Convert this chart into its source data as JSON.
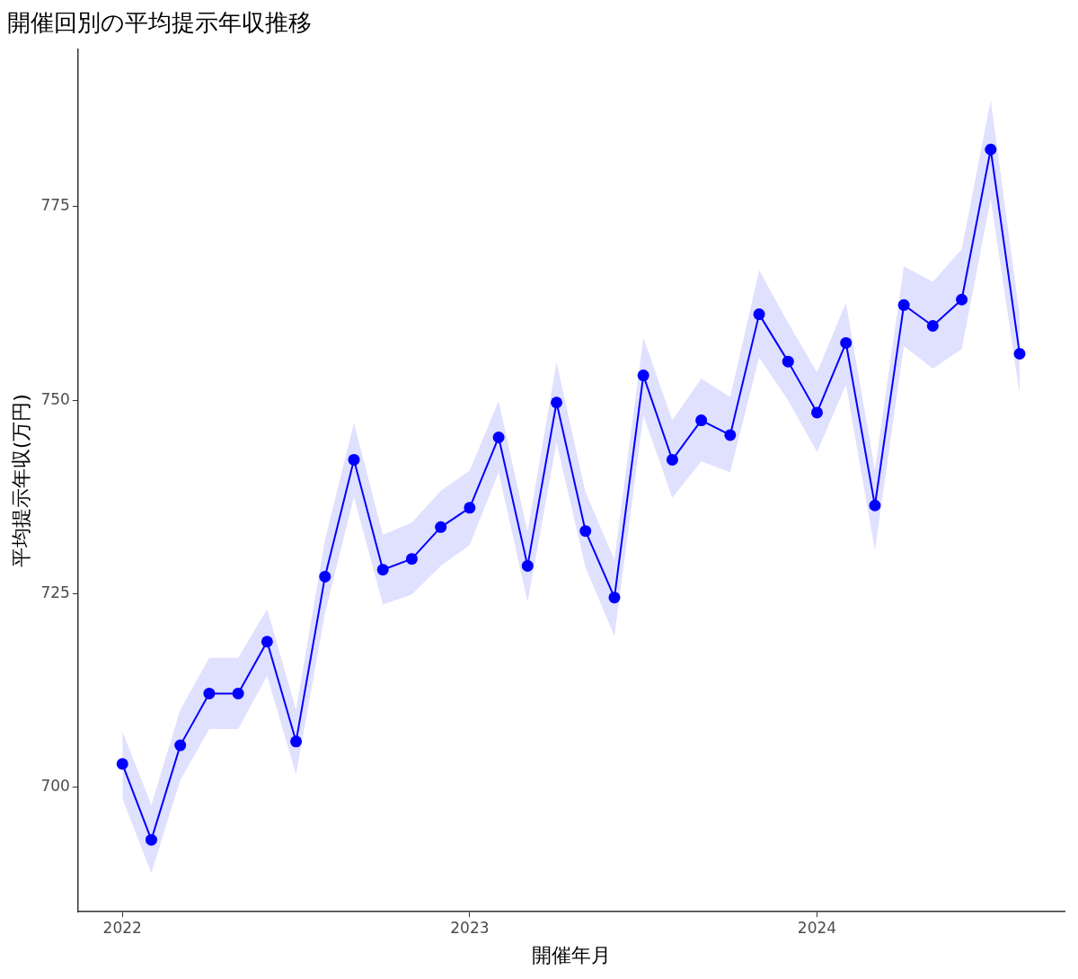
{
  "chart_data": {
    "type": "line",
    "title": "開催回別の平均提示年収推移",
    "xlabel": "開催年月",
    "ylabel": "平均提示年収(万円)",
    "x": [
      "2022-01",
      "2022-02",
      "2022-03",
      "2022-04",
      "2022-05",
      "2022-06",
      "2022-07",
      "2022-08",
      "2022-09",
      "2022-10",
      "2022-11",
      "2022-12",
      "2023-01",
      "2023-02",
      "2023-03",
      "2023-04",
      "2023-05",
      "2023-06",
      "2023-07",
      "2023-08",
      "2023-09",
      "2023-10",
      "2023-11",
      "2023-12",
      "2024-01",
      "2024-02",
      "2024-03",
      "2024-04",
      "2024-05",
      "2024-06",
      "2024-07",
      "2024-08"
    ],
    "series": [
      {
        "color": "#0000ff",
        "values": [
          703.0,
          693.2,
          705.4,
          712.1,
          712.1,
          718.8,
          705.9,
          727.2,
          742.3,
          728.1,
          729.5,
          733.6,
          736.1,
          745.2,
          728.6,
          749.7,
          733.1,
          724.5,
          753.2,
          742.3,
          747.4,
          745.5,
          761.1,
          755.0,
          748.4,
          757.4,
          736.4,
          762.3,
          759.6,
          763.0,
          782.4,
          756.0
        ],
        "lower": [
          698.5,
          688.9,
          700.9,
          707.5,
          707.5,
          714.4,
          701.6,
          722.5,
          737.5,
          723.6,
          724.9,
          728.6,
          731.3,
          740.7,
          723.9,
          744.5,
          728.4,
          719.5,
          748.0,
          737.4,
          742.1,
          740.7,
          755.5,
          750.0,
          743.3,
          752.0,
          730.6,
          757.0,
          754.1,
          756.6,
          776.0,
          750.8
        ],
        "upper": [
          707.2,
          697.7,
          710.0,
          716.7,
          716.7,
          723.0,
          710.0,
          732.0,
          747.1,
          732.6,
          734.2,
          738.3,
          740.9,
          749.9,
          733.0,
          754.9,
          738.1,
          729.4,
          758.1,
          747.4,
          752.8,
          750.4,
          766.8,
          760.0,
          753.6,
          762.6,
          741.0,
          767.3,
          765.3,
          769.5,
          788.8,
          761.0
        ]
      }
    ],
    "xlim": [
      "2021-11-15",
      "2024-09-18"
    ],
    "xticks": [
      "2022",
      "2023",
      "2024"
    ],
    "ylim": [
      683.9,
      795.3
    ],
    "yticks": [
      700,
      725,
      750,
      775
    ],
    "grid": false,
    "legend": false,
    "marker": "circle",
    "line_style": "solid"
  }
}
